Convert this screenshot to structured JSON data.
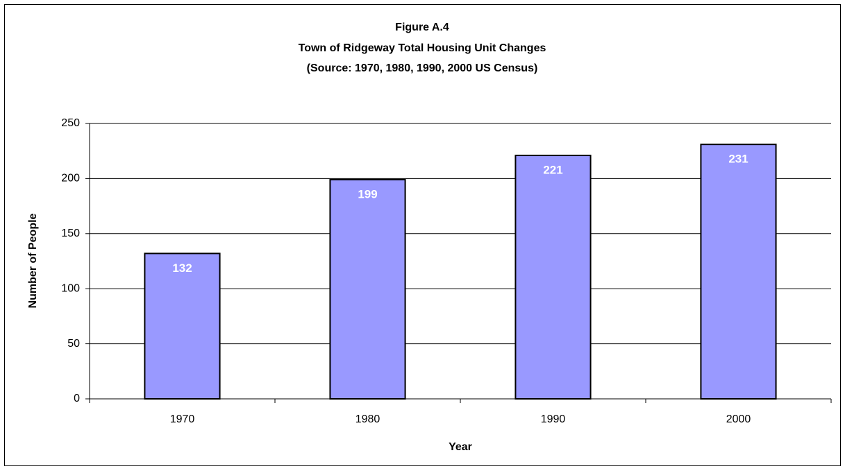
{
  "chart_data": {
    "type": "bar",
    "title": [
      "Figure A.4",
      "Town of Ridgeway Total Housing Unit Changes",
      "(Source:  1970, 1980, 1990, 2000 US Census)"
    ],
    "x_label": "Year",
    "y_label": "Number of People",
    "categories": [
      "1970",
      "1980",
      "1990",
      "2000"
    ],
    "values": [
      132,
      199,
      221,
      231
    ],
    "color": "#9999ff",
    "ylim": [
      0,
      250
    ],
    "yticks": [
      0,
      50,
      100,
      150,
      200,
      250
    ],
    "grid": true
  }
}
